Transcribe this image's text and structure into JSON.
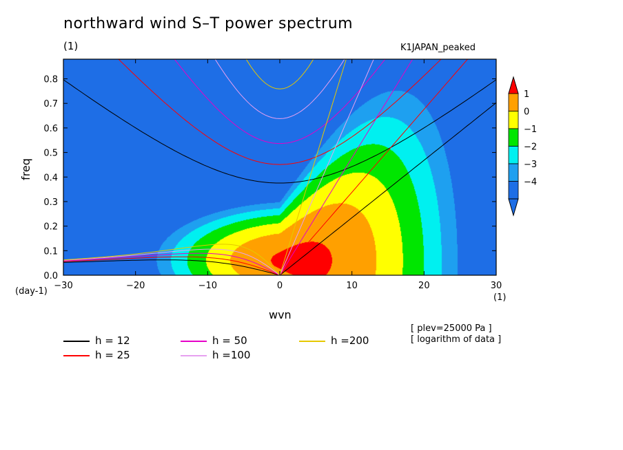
{
  "chart_data": {
    "type": "heatmap",
    "title": "northward wind S–T power spectrum",
    "subtitle_left": "(1)",
    "subtitle_right": "K1JAPAN_peaked",
    "xlabel": "wvn",
    "ylabel": "freq",
    "x_unit": "(1)",
    "y_unit": "(day-1)",
    "xlim": [
      -30,
      30
    ],
    "ylim": [
      0,
      0.88
    ],
    "xticks": [
      -30,
      -20,
      -10,
      0,
      10,
      20,
      30
    ],
    "xtick_labels": [
      "−30",
      "−20",
      "−10",
      "0",
      "10",
      "20",
      "30"
    ],
    "yticks": [
      0,
      0.1,
      0.2,
      0.3,
      0.4,
      0.5,
      0.6,
      0.7,
      0.8
    ],
    "ytick_labels": [
      "0.0",
      "0.1",
      "0.2",
      "0.3",
      "0.4",
      "0.5",
      "0.6",
      "0.7",
      "0.8"
    ],
    "colorbar": {
      "labels": [
        "1",
        "0",
        "−1",
        "−2",
        "−3",
        "−4"
      ],
      "levels": [
        -5,
        -4,
        -3,
        -2,
        -1,
        0,
        1,
        2
      ],
      "colors": [
        "#1e6ee6",
        "#1ea0f0",
        "#00f0f0",
        "#00e600",
        "#ffff00",
        "#ffa000",
        "#ff0000"
      ]
    },
    "field_peak": {
      "k": 3,
      "f": 0.06,
      "value": 1.2
    },
    "dispersion_curves": [
      {
        "h": 12,
        "name": "h = 12",
        "color": "#000000"
      },
      {
        "h": 25,
        "name": "h = 25",
        "color": "#ff0000"
      },
      {
        "h": 50,
        "name": "h = 50",
        "color": "#e600c8"
      },
      {
        "h": 100,
        "name": "h =100",
        "color": "#e6a0f0"
      },
      {
        "h": 200,
        "name": "h =200",
        "color": "#e6c800"
      }
    ],
    "annotations": [
      "[ plev=25000 Pa ]",
      "[ logarithm of data ]"
    ]
  }
}
